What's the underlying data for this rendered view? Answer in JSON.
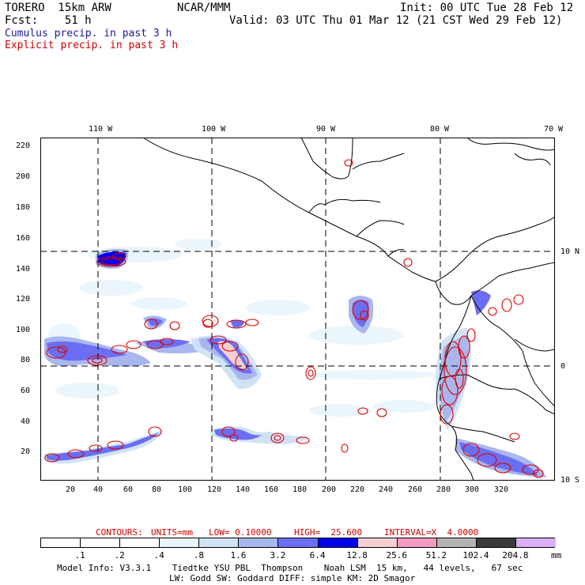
{
  "header": {
    "model": "TORERO  15km ARW",
    "org": "NCAR/MMM",
    "init": "Init: 00 UTC Tue 28 Feb 12",
    "fcst": "Fcst:    51 h",
    "valid": "Valid: 03 UTC Thu 01 Mar 12 (21 CST Wed 29 Feb 12)",
    "field1": "Cumulus precip. in past 3 h",
    "field2": "Explicit precip. in past 3 h"
  },
  "map": {
    "lon_labels": [
      "110 W",
      "100 W",
      "90 W",
      "80 W",
      "70 W"
    ],
    "lat_labels": [
      "10 N",
      "0",
      "10 S"
    ],
    "y_ticks": [
      "20",
      "40",
      "60",
      "80",
      "100",
      "120",
      "140",
      "160",
      "180",
      "200",
      "220"
    ],
    "x_ticks": [
      "20",
      "40",
      "60",
      "80",
      "100",
      "120",
      "140",
      "160",
      "180",
      "200",
      "220",
      "240",
      "260",
      "280",
      "300",
      "320"
    ]
  },
  "contour_info": {
    "contours": "CONTOURS:",
    "units": "UNITS=mm",
    "low": "LOW= 0.10000",
    "high": "HIGH=  25.600",
    "interval": "INTERVAL=X  4.0000"
  },
  "legend": {
    "labels": [
      ".1",
      ".2",
      ".4",
      ".8",
      "1.6",
      "3.2",
      "6.4",
      "12.8",
      "25.6",
      "51.2",
      "102.4",
      "204.8"
    ],
    "unit": "mm",
    "colors": [
      "#ffffff",
      "#ffffff",
      "#ffffff",
      "#eaf6fb",
      "#cfe3f5",
      "#a9b7ee",
      "#6b6ef0",
      "#0000ee",
      "#f6d0d0",
      "#f29ac0",
      "#b3b3b3",
      "#3a3a3a",
      "#d9b0f5"
    ]
  },
  "footer": {
    "line1": "Model Info: V3.3.1    Tiedtke YSU PBL  Thompson    Noah LSM  15 km,   44 levels,   67 sec",
    "line2": "LW: Godd SW: Goddard DIFF: simple KM: 2D Smagor"
  }
}
